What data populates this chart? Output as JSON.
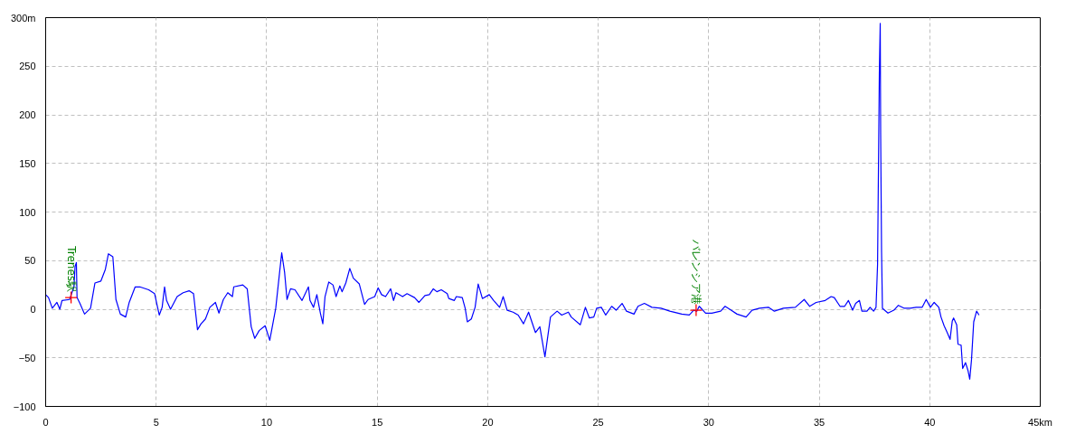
{
  "chart_data": {
    "type": "line",
    "xlim": [
      0,
      45
    ],
    "ylim": [
      -100,
      300
    ],
    "xticks": [
      0,
      5,
      10,
      15,
      20,
      25,
      30,
      35,
      40,
      {
        "value": 45,
        "label": "45km"
      }
    ],
    "yticks": [
      -100,
      -50,
      0,
      50,
      100,
      150,
      200,
      250,
      {
        "value": 300,
        "label": "300m"
      }
    ],
    "grid": true,
    "marker": "none",
    "line_style": "solid",
    "annotations": [
      {
        "text": "Trenes駅",
        "x": 1.15,
        "y": 12
      },
      {
        "text": "バレンシア港",
        "x": 29.43,
        "y": -1
      }
    ],
    "series": [
      {
        "color": "#0000ff",
        "x": [
          0,
          0.13,
          0.3,
          0.51,
          0.64,
          0.74,
          1.08,
          1.28,
          1.33,
          1.39,
          1.42,
          1.55,
          1.76,
          2.03,
          2.23,
          2.5,
          2.7,
          2.84,
          3.04,
          3.18,
          3.38,
          3.62,
          3.78,
          4.05,
          4.26,
          4.66,
          4.93,
          5.14,
          5.27,
          5.38,
          5.47,
          5.65,
          5.95,
          6.22,
          6.49,
          6.69,
          6.87,
          7.03,
          7.23,
          7.43,
          7.68,
          7.84,
          8.04,
          8.24,
          8.45,
          8.51,
          8.92,
          9.12,
          9.3,
          9.46,
          9.66,
          9.93,
          10.14,
          10.41,
          10.68,
          10.81,
          10.92,
          11.08,
          11.28,
          11.6,
          11.89,
          11.96,
          12.12,
          12.27,
          12.43,
          12.54,
          12.64,
          12.81,
          13.0,
          13.14,
          13.31,
          13.41,
          13.58,
          13.76,
          13.92,
          14.19,
          14.43,
          14.59,
          14.89,
          15.04,
          15.2,
          15.38,
          15.61,
          15.74,
          15.85,
          16.15,
          16.35,
          16.69,
          16.89,
          17.16,
          17.36,
          17.54,
          17.7,
          17.9,
          18.17,
          18.24,
          18.49,
          18.58,
          18.85,
          18.98,
          19.08,
          19.26,
          19.43,
          19.57,
          19.76,
          20.07,
          20.27,
          20.54,
          20.7,
          20.88,
          21.15,
          21.38,
          21.62,
          21.85,
          22.16,
          22.36,
          22.59,
          22.84,
          23.14,
          23.35,
          23.65,
          23.78,
          24.19,
          24.42,
          24.6,
          24.8,
          24.93,
          25.14,
          25.34,
          25.61,
          25.81,
          26.08,
          26.28,
          26.62,
          26.8,
          27.09,
          27.43,
          27.84,
          28.24,
          28.78,
          29.12,
          29.32,
          29.46,
          29.57,
          29.86,
          30.14,
          30.54,
          30.74,
          31.01,
          31.28,
          31.69,
          31.96,
          32.3,
          32.7,
          32.97,
          33.38,
          33.92,
          34.32,
          34.57,
          34.86,
          35.27,
          35.54,
          35.68,
          35.94,
          36.15,
          36.32,
          36.51,
          36.65,
          36.82,
          36.93,
          37.16,
          37.3,
          37.46,
          37.57,
          37.64,
          37.68,
          37.72,
          37.76,
          37.78,
          37.82,
          37.86,
          38.11,
          38.38,
          38.58,
          38.85,
          39.12,
          39.39,
          39.66,
          39.84,
          40.03,
          40.2,
          40.41,
          40.51,
          40.65,
          40.79,
          40.92,
          41.02,
          41.08,
          41.22,
          41.28,
          41.42,
          41.49,
          41.62,
          41.73,
          41.81,
          41.89,
          41.99,
          42.12,
          42.23
        ],
        "values": [
          15,
          12,
          1,
          7,
          0,
          9,
          10,
          23,
          44,
          48,
          12,
          6,
          -5,
          1,
          27,
          29,
          41,
          57,
          54,
          10,
          -5,
          -8,
          7,
          23,
          23,
          20,
          16,
          -6,
          2,
          23,
          9,
          0,
          13,
          17,
          19,
          16,
          -21,
          -15,
          -10,
          2,
          7,
          -4,
          10,
          17,
          13,
          23,
          25,
          21,
          -18,
          -30,
          -22,
          -17,
          -32,
          1,
          58,
          38,
          10,
          21,
          20,
          9,
          23,
          9,
          2,
          15,
          -4,
          -15,
          13,
          28,
          25,
          13,
          24,
          18,
          27,
          42,
          32,
          26,
          5,
          10,
          13,
          22,
          15,
          13,
          21,
          9,
          17,
          13,
          16,
          12,
          7,
          14,
          15,
          21,
          18,
          20,
          16,
          11,
          9,
          13,
          12,
          1,
          -13,
          -10,
          2,
          26,
          11,
          15,
          9,
          2,
          13,
          -1,
          -3,
          -6,
          -15,
          -3,
          -24,
          -18,
          -49,
          -8,
          -2,
          -6,
          -3,
          -8,
          -16,
          2,
          -9,
          -8,
          1,
          2,
          -6,
          3,
          -1,
          6,
          -2,
          -5,
          3,
          6,
          2,
          1,
          -2,
          -5,
          -6,
          -1,
          -2,
          3,
          -4,
          -4,
          -2,
          3,
          -1,
          -5,
          -8,
          -1,
          1,
          2,
          -2,
          1,
          2,
          10,
          3,
          7,
          9,
          13,
          12,
          3,
          3,
          9,
          -1,
          6,
          9,
          -2,
          -2,
          2,
          -2,
          2,
          46,
          145,
          243,
          294,
          181,
          60,
          1,
          -4,
          -1,
          4,
          1,
          1,
          2,
          2,
          10,
          2,
          7,
          2,
          -8,
          -17,
          -24,
          -31,
          -12,
          -9,
          -16,
          -36,
          -37,
          -61,
          -55,
          -63,
          -72,
          -52,
          -13,
          -2,
          -6
        ]
      }
    ]
  }
}
